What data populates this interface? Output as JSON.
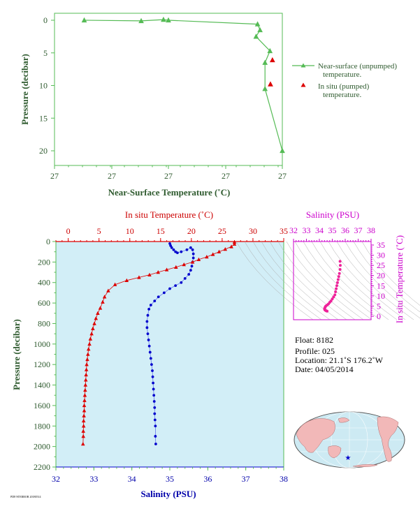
{
  "top_chart": {
    "xlabel": "Near-Surface Temperature (˚C)",
    "ylabel": "Pressure (decibar)",
    "x_tick_labels": [
      "27",
      "27",
      "27",
      "27",
      "27"
    ],
    "y_tick_labels": [
      "0",
      "5",
      "10",
      "15",
      "20"
    ],
    "legend": {
      "series1_line1": "Near-surface (unpumped)",
      "series1_line2": "temperature.",
      "series2_line1": "In situ (pumped)",
      "series2_line2": "temperature."
    },
    "colors": {
      "series1": "#55bb55",
      "series2": "#dd0000",
      "axis": "#55bb55"
    }
  },
  "main_chart": {
    "top_axis_label": "In situ Temperature (˚C)",
    "bottom_axis_label": "Salinity (PSU)",
    "ylabel": "Pressure (decibar)",
    "temp_tick_labels": [
      "0",
      "5",
      "10",
      "15",
      "20",
      "25",
      "30",
      "35"
    ],
    "sal_tick_labels": [
      "32",
      "33",
      "34",
      "35",
      "36",
      "37",
      "38"
    ],
    "pressure_tick_labels": [
      "0",
      "200",
      "400",
      "600",
      "800",
      "1000",
      "1200",
      "1400",
      "1600",
      "1800",
      "2000",
      "2200"
    ],
    "colors": {
      "temperature": "#dd0000",
      "salinity": "#0000cc",
      "background": "#d2eef7",
      "axis": "#55bb55"
    }
  },
  "ts_chart": {
    "top_axis_label": "Salinity (PSU)",
    "right_axis_label": "In situ Temperature (˚C)",
    "sal_tick_labels": [
      "32",
      "33",
      "34",
      "35",
      "36",
      "37",
      "38"
    ],
    "temp_tick_labels": [
      "0",
      "5",
      "10",
      "15",
      "20",
      "25",
      "30",
      "35"
    ],
    "colors": {
      "axis": "#cc00cc",
      "points": "#ee2299"
    }
  },
  "info": {
    "float": "Float:  8182",
    "profile": "Profile:  025",
    "location": "Location:  21.1˚S  176.2˚W",
    "date": "Date:  04/05/2014"
  },
  "footer_note": "PDF/STERROR 20180514",
  "map": {
    "marker_color": "#0000cc",
    "land_color": "#f2b8b8",
    "ocean_color": "#cdeaf3"
  },
  "chart_data": [
    {
      "type": "line",
      "title": "",
      "xlabel": "Near-Surface Temperature (˚C)",
      "ylabel": "Pressure (decibar)",
      "ylim": [
        22,
        -1
      ],
      "series": [
        {
          "name": "Near-surface (unpumped) temperature.",
          "x": [
            26.725,
            26.84,
            26.885,
            26.895,
            27.075,
            27.08,
            27.072,
            27.1,
            27.09,
            27.09,
            27.125
          ],
          "y": [
            0,
            0.1,
            -0.1,
            0,
            0.6,
            1.5,
            2.5,
            4.7,
            6.5,
            10.5,
            20
          ]
        },
        {
          "name": "In situ (pumped) temperature.",
          "x": [
            27.105,
            27.101
          ],
          "y": [
            6.1,
            9.8
          ]
        }
      ]
    },
    {
      "type": "scatter",
      "title": "",
      "xlabel": "In situ Temperature (˚C)",
      "ylabel": "Pressure (decibar)",
      "xlim": [
        -2,
        35
      ],
      "ylim": [
        2200,
        0
      ],
      "series": [
        {
          "name": "In situ Temperature",
          "x": [
            27,
            27,
            26.5,
            25.5,
            24.5,
            23.5,
            22.5,
            21.2,
            20.2,
            18.8,
            17.5,
            16.0,
            14.6,
            13.2,
            11.5,
            9.5,
            7.6,
            6.5,
            5.9,
            5.6,
            5.2,
            4.8,
            4.5,
            4.25,
            4.0,
            3.8,
            3.6,
            3.45,
            3.3,
            3.2,
            3.1,
            3.0,
            2.95,
            2.9,
            2.85,
            2.8,
            2.75,
            2.7,
            2.65,
            2.6,
            2.6,
            2.55,
            2.5,
            2.5,
            2.45,
            2.45,
            2.4
          ],
          "y": [
            5,
            25,
            50,
            75,
            100,
            125,
            150,
            175,
            200,
            225,
            250,
            275,
            300,
            325,
            350,
            380,
            420,
            480,
            540,
            590,
            650,
            700,
            750,
            800,
            850,
            900,
            950,
            1000,
            1050,
            1100,
            1150,
            1200,
            1250,
            1300,
            1350,
            1400,
            1450,
            1500,
            1550,
            1600,
            1650,
            1700,
            1750,
            1800,
            1850,
            1900,
            1975
          ]
        }
      ]
    },
    {
      "type": "scatter",
      "title": "",
      "xlabel": "Salinity (PSU)",
      "ylabel": "Pressure (decibar)",
      "xlim": [
        32,
        38
      ],
      "ylim": [
        2200,
        0
      ],
      "series": [
        {
          "name": "Salinity",
          "x": [
            35.0,
            35.02,
            35.05,
            35.1,
            35.15,
            35.2,
            35.3,
            35.45,
            35.55,
            35.6,
            35.62,
            35.62,
            35.6,
            35.58,
            35.55,
            35.5,
            35.4,
            35.3,
            35.15,
            35.0,
            34.85,
            34.7,
            34.6,
            34.5,
            34.45,
            34.42,
            34.4,
            34.4,
            34.42,
            34.44,
            34.46,
            34.48,
            34.5,
            34.52,
            34.54,
            34.55,
            34.56,
            34.57,
            34.58,
            34.59,
            34.6,
            34.6,
            34.61,
            34.62,
            34.62,
            34.63
          ],
          "y": [
            20,
            40,
            60,
            80,
            100,
            110,
            100,
            80,
            60,
            80,
            120,
            160,
            200,
            240,
            280,
            320,
            360,
            400,
            430,
            460,
            500,
            540,
            580,
            620,
            660,
            720,
            780,
            840,
            900,
            960,
            1020,
            1080,
            1140,
            1200,
            1260,
            1320,
            1380,
            1440,
            1500,
            1560,
            1620,
            1680,
            1740,
            1800,
            1900,
            1975
          ]
        }
      ]
    },
    {
      "type": "scatter",
      "title": "",
      "xlabel": "Salinity (PSU)",
      "ylabel": "In situ Temperature (˚C)",
      "xlim": [
        32,
        38
      ],
      "ylim": [
        0,
        35
      ],
      "series": [
        {
          "name": "T-S",
          "x": [
            35.6,
            35.62,
            35.6,
            35.55,
            35.5,
            35.45,
            35.4,
            35.35,
            35.3,
            35.25,
            35.2,
            35.1,
            35.0,
            34.9,
            34.8,
            34.7,
            34.6,
            34.5,
            34.45,
            34.42,
            34.4,
            34.42,
            34.45,
            34.5,
            34.55,
            34.6
          ],
          "y": [
            27,
            25,
            23,
            21,
            19.5,
            18,
            16.5,
            15,
            13.5,
            12,
            10.5,
            9.5,
            8.5,
            7.5,
            6.8,
            6,
            5.5,
            5,
            4.5,
            4,
            3.6,
            3.2,
            3,
            2.8,
            2.6,
            2.5
          ]
        }
      ]
    }
  ]
}
